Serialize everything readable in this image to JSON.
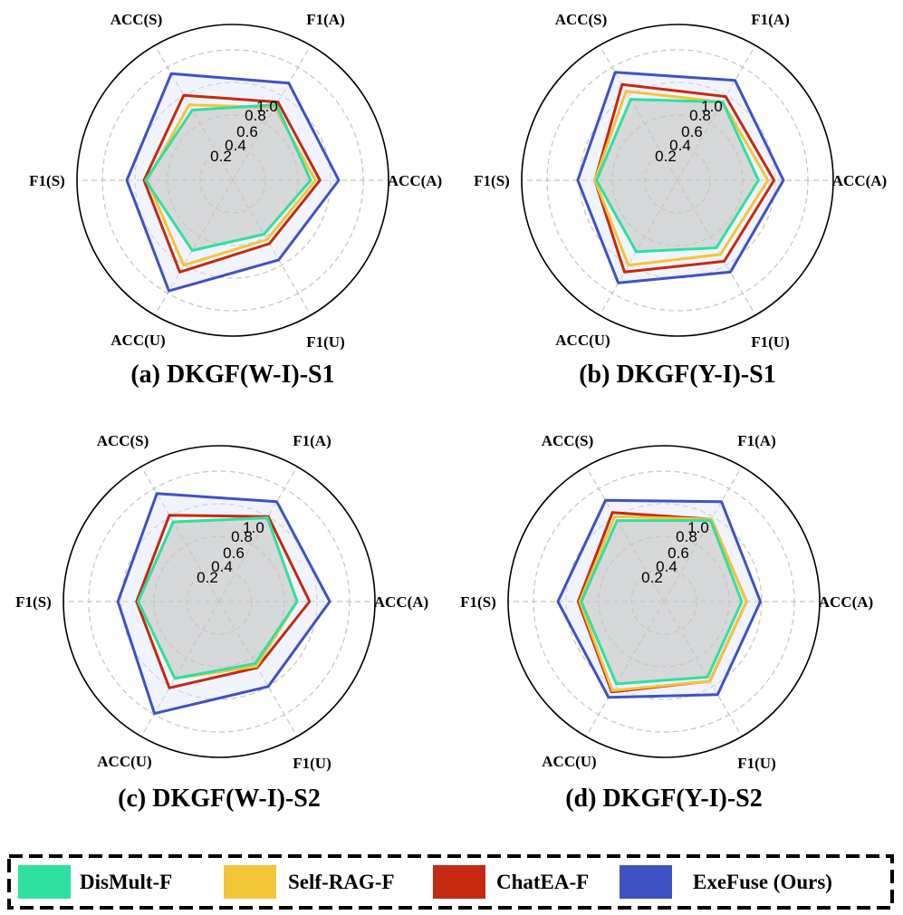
{
  "legend": [
    {
      "name": "DisMult-F",
      "color": "#2fe0a0"
    },
    {
      "name": "Self-RAG-F",
      "color": "#f2c53a"
    },
    {
      "name": "ChatEA-F",
      "color": "#c42a10"
    },
    {
      "name": "ExeFuse (Ours)",
      "color": "#3f52c4"
    }
  ],
  "chart_data": [
    {
      "type": "radar",
      "title": "(a) DKGF(W-I)-S1",
      "axes": [
        "ACC(A)",
        "F1(A)",
        "ACC(S)",
        "F1(S)",
        "ACC(U)",
        "F1(U)"
      ],
      "ticks": [
        "0.2",
        "0.4",
        "0.6",
        "0.8",
        "1.0"
      ],
      "rlim": [
        0,
        1.0
      ],
      "grid": true,
      "series": [
        {
          "name": "DisMult-F",
          "values": [
            0.5,
            0.56,
            0.52,
            0.56,
            0.52,
            0.4
          ]
        },
        {
          "name": "Self-RAG-F",
          "values": [
            0.53,
            0.54,
            0.56,
            0.55,
            0.63,
            0.44
          ]
        },
        {
          "name": "ChatEA-F",
          "values": [
            0.56,
            0.58,
            0.63,
            0.57,
            0.68,
            0.47
          ]
        },
        {
          "name": "ExeFuse (Ours)",
          "values": [
            0.68,
            0.72,
            0.79,
            0.68,
            0.82,
            0.59
          ]
        }
      ]
    },
    {
      "type": "radar",
      "title": "(b) DKGF(Y-I)-S1",
      "axes": [
        "ACC(A)",
        "F1(A)",
        "ACC(S)",
        "F1(S)",
        "ACC(U)",
        "F1(U)"
      ],
      "ticks": [
        "0.2",
        "0.4",
        "0.6",
        "0.8",
        "1.0"
      ],
      "rlim": [
        0,
        1.0
      ],
      "grid": true,
      "series": [
        {
          "name": "DisMult-F",
          "values": [
            0.52,
            0.58,
            0.6,
            0.52,
            0.53,
            0.5
          ]
        },
        {
          "name": "Self-RAG-F",
          "values": [
            0.58,
            0.58,
            0.66,
            0.53,
            0.63,
            0.55
          ]
        },
        {
          "name": "ChatEA-F",
          "values": [
            0.62,
            0.62,
            0.71,
            0.53,
            0.68,
            0.6
          ]
        },
        {
          "name": "ExeFuse (Ours)",
          "values": [
            0.68,
            0.74,
            0.8,
            0.64,
            0.76,
            0.68
          ]
        }
      ]
    },
    {
      "type": "radar",
      "title": "(c) DKGF(W-I)-S2",
      "axes": [
        "ACC(A)",
        "F1(A)",
        "ACC(S)",
        "F1(S)",
        "ACC(U)",
        "F1(U)"
      ],
      "ticks": [
        "0.2",
        "0.4",
        "0.6",
        "0.8",
        "1.0"
      ],
      "rlim": [
        0,
        1.0
      ],
      "grid": true,
      "series": [
        {
          "name": "DisMult-F",
          "values": [
            0.5,
            0.62,
            0.59,
            0.52,
            0.57,
            0.46
          ]
        },
        {
          "name": "Self-RAG-F",
          "values": [
            0.5,
            0.62,
            0.59,
            0.52,
            0.57,
            0.48
          ]
        },
        {
          "name": "ChatEA-F",
          "values": [
            0.58,
            0.63,
            0.64,
            0.53,
            0.64,
            0.49
          ]
        },
        {
          "name": "ExeFuse (Ours)",
          "values": [
            0.71,
            0.74,
            0.8,
            0.65,
            0.83,
            0.63
          ]
        }
      ]
    },
    {
      "type": "radar",
      "title": "(d) DKGF(Y-I)-S2",
      "axes": [
        "ACC(A)",
        "F1(A)",
        "ACC(S)",
        "F1(S)",
        "ACC(U)",
        "F1(U)"
      ],
      "ticks": [
        "0.2",
        "0.4",
        "0.6",
        "0.8",
        "1.0"
      ],
      "rlim": [
        0,
        1.0
      ],
      "grid": true,
      "series": [
        {
          "name": "DisMult-F",
          "values": [
            0.5,
            0.6,
            0.6,
            0.53,
            0.61,
            0.56
          ]
        },
        {
          "name": "Self-RAG-F",
          "values": [
            0.53,
            0.61,
            0.63,
            0.54,
            0.66,
            0.59
          ]
        },
        {
          "name": "ChatEA-F",
          "values": [
            0.53,
            0.61,
            0.66,
            0.55,
            0.67,
            0.59
          ]
        },
        {
          "name": "ExeFuse (Ours)",
          "values": [
            0.62,
            0.74,
            0.75,
            0.68,
            0.71,
            0.69
          ]
        }
      ]
    }
  ]
}
